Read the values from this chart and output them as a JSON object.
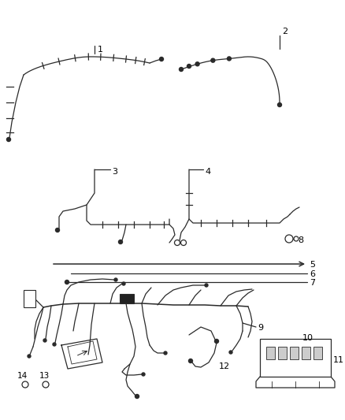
{
  "bg_color": "#ffffff",
  "line_color": "#2a2a2a",
  "label_color": "#000000",
  "fig_width": 4.38,
  "fig_height": 5.33,
  "dpi": 100
}
